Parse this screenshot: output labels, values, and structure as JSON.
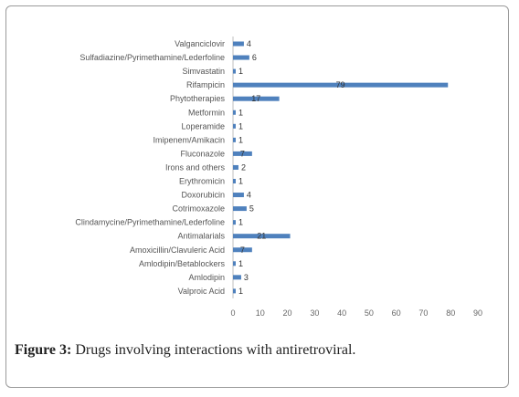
{
  "caption": {
    "label": "Figure 3:",
    "text": " Drugs involving interactions with antiretroviral."
  },
  "chart_data": {
    "type": "bar",
    "orientation": "horizontal",
    "title": "",
    "xlabel": "",
    "ylabel": "",
    "xlim": [
      0,
      90
    ],
    "ticks": [
      0,
      10,
      20,
      30,
      40,
      50,
      60,
      70,
      80,
      90
    ],
    "grid": false,
    "bar_color": "#4f81bd",
    "categories": [
      "Valganciclovir",
      "Sulfadiazine/Pyrimethamine/Lederfoline",
      "Simvastatin",
      "Rifampicin",
      "Phytotherapies",
      "Metformin",
      "Loperamide",
      "Imipenem/Amikacin",
      "Fluconazole",
      "Irons and others",
      "Erythromicin",
      "Doxorubicin",
      "Cotrimoxazole",
      "Clindamycine/Pyrimethamine/Lederfoline",
      "Antimalarials",
      "Amoxicillin/Clavuleric Acid",
      "Amlodipin/Betablockers",
      "Amlodipin",
      "Valproic Acid"
    ],
    "values": [
      4,
      6,
      1,
      79,
      17,
      1,
      1,
      1,
      7,
      2,
      1,
      4,
      5,
      1,
      21,
      7,
      1,
      3,
      1
    ],
    "data_labels": [
      "4",
      "6",
      "1",
      "79",
      "17",
      "1",
      "1",
      "1",
      "7",
      "2",
      "1",
      "4",
      "5",
      "1",
      "21",
      "7",
      "1",
      "3",
      "1"
    ]
  }
}
